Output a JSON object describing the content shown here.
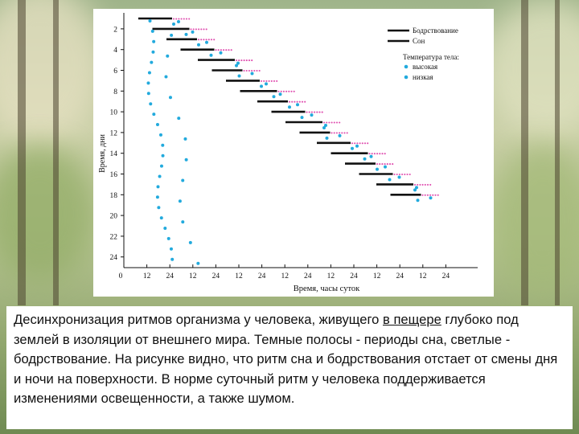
{
  "figure": {
    "y_axis_title": "Время, дни",
    "x_axis_title": "Время, часы суток",
    "y_ticks": [
      "2",
      "4",
      "6",
      "8",
      "10",
      "12",
      "14",
      "16",
      "18",
      "20",
      "22",
      "24"
    ],
    "x_ticks": [
      "0",
      "12",
      "24",
      "12",
      "24",
      "12",
      "24",
      "12",
      "24",
      "12",
      "24",
      "12",
      "24",
      "12",
      "24"
    ],
    "legend": {
      "wake": "Бодрствование",
      "sleep": "Сон",
      "temp_title": "Температура тела:",
      "temp_high": "высокая",
      "temp_low": "низкая"
    },
    "colors": {
      "bar": "#111111",
      "sleep_dots": "#e04fb0",
      "temp_dots": "#22aadd"
    }
  },
  "caption": {
    "part1": "Десинхронизация ритмов организма у человека, живущего ",
    "underlined": "в пещере",
    "part2": " глубоко под землей в изоляции от внешнего мира. Темные полосы - периоды сна, светлые - бодрствование. На рисунке видно, что ритм сна и бодрствования отстает от смены дня и ночи на поверхности. В норме суточный ритм у человека поддерживается изменениями освещенности, а также шумом."
  }
}
